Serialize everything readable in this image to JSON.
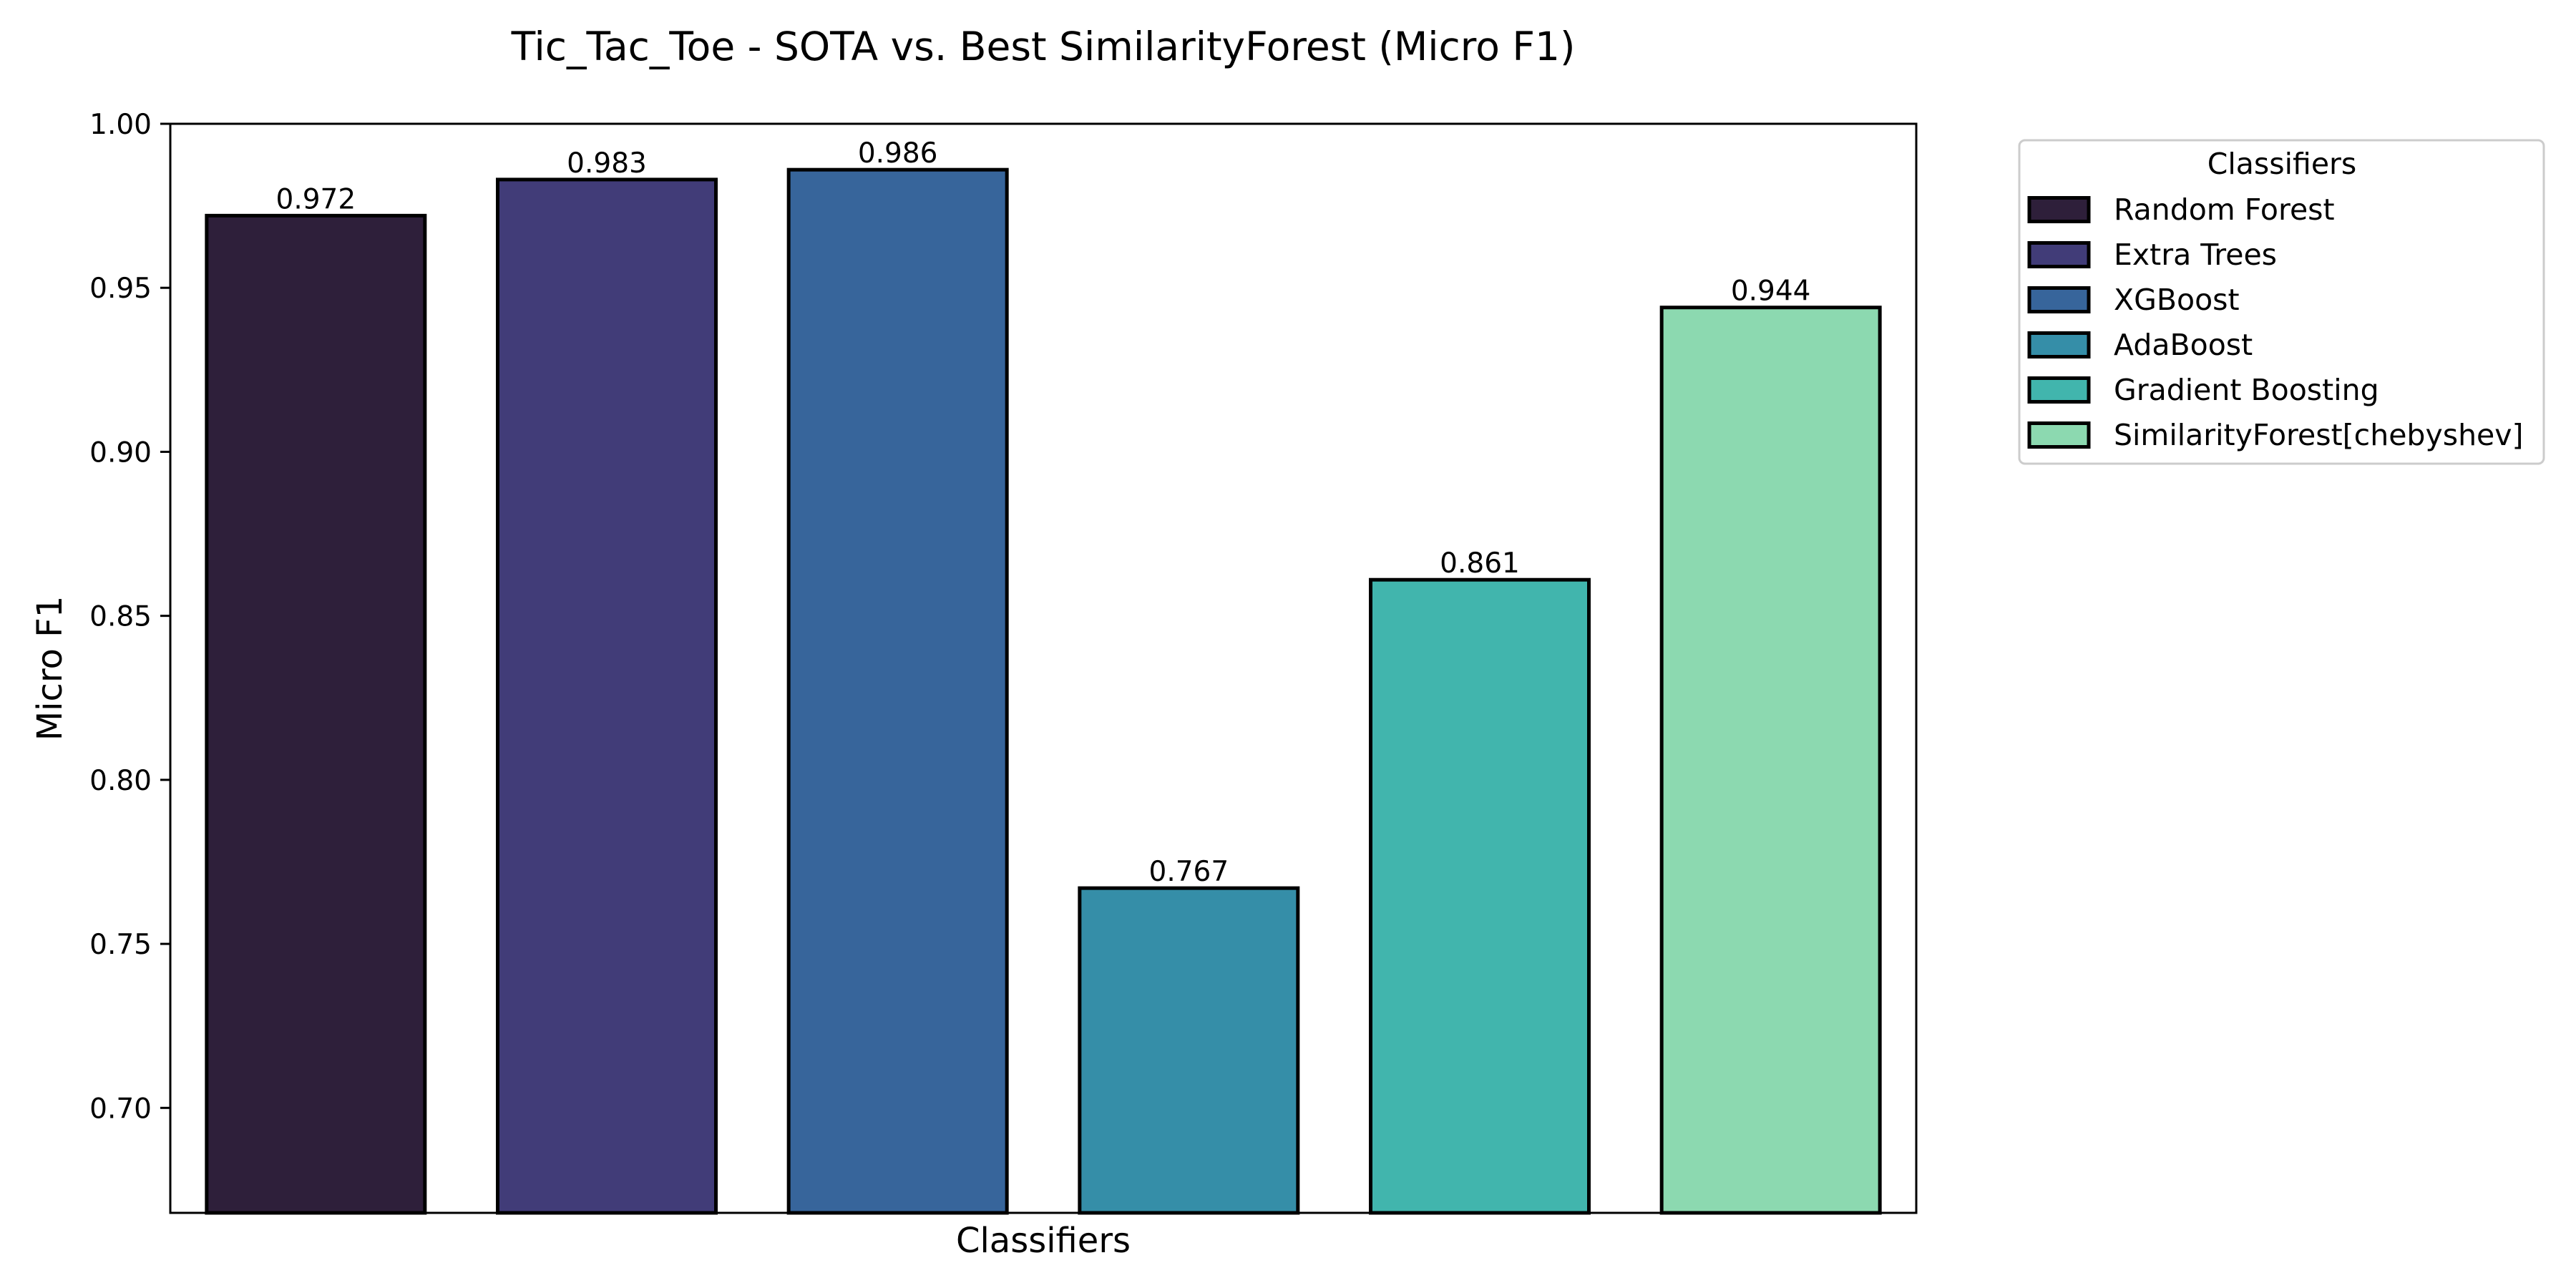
{
  "chart_data": {
    "type": "bar",
    "title": "Tic_Tac_Toe - SOTA vs. Best SimilarityForest (Micro F1)",
    "xlabel": "Classifiers",
    "ylabel": "Micro F1",
    "ylim": [
      0.668,
      1.0
    ],
    "yticks": [
      "0.70",
      "0.75",
      "0.80",
      "0.85",
      "0.90",
      "0.95",
      "1.00"
    ],
    "grid": false,
    "legend_position": "outside-right",
    "legend_title": "Classifiers",
    "categories": [
      "Random Forest",
      "Extra Trees",
      "XGBoost",
      "AdaBoost",
      "Gradient Boosting",
      "SimilarityForest[chebyshev]"
    ],
    "values": [
      0.972,
      0.983,
      0.986,
      0.767,
      0.861,
      0.944
    ],
    "data_labels": [
      "0.972",
      "0.983",
      "0.986",
      "0.767",
      "0.861",
      "0.944"
    ],
    "colors": [
      "#2e1f3a",
      "#413c78",
      "#37659b",
      "#358ea8",
      "#41b5ad",
      "#8cd9b0"
    ],
    "edge_color": "#000000"
  }
}
